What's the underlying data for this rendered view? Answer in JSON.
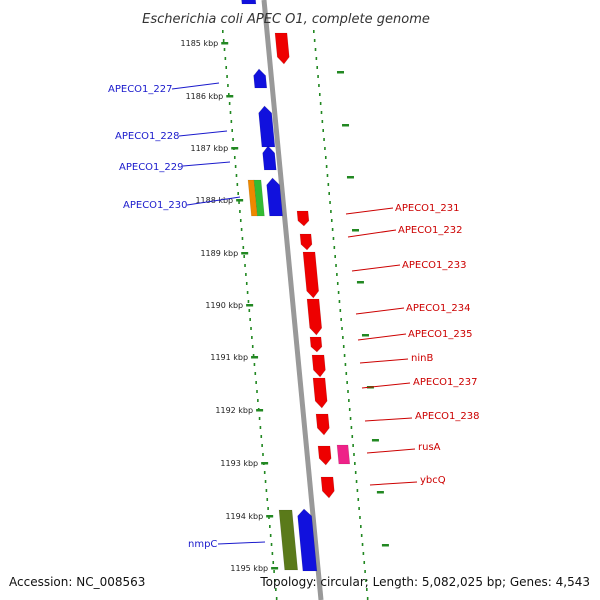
{
  "title": "Escherichia coli APEC O1, complete genome",
  "accession": "Accession: NC_008563",
  "summary": "Topology: circular; Length: 5,082,025 bp; Genes: 4,543",
  "ticks": [
    "1185 kbp",
    "1186 kbp",
    "1187 kbp",
    "1188 kbp",
    "1189 kbp",
    "1190 kbp",
    "1191 kbp",
    "1192 kbp",
    "1193 kbp",
    "1194 kbp",
    "1195 kbp"
  ],
  "genes_left": [
    "APECO1_227",
    "APECO1_228",
    "APECO1_229",
    "APECO1_230",
    "nmpC"
  ],
  "genes_right": [
    "APECO1_231",
    "APECO1_232",
    "APECO1_233",
    "APECO1_234",
    "APECO1_235",
    "ninB",
    "APECO1_237",
    "APECO1_238",
    "rusA",
    "ybcQ"
  ],
  "colors": {
    "forward_gene": "#ee0000",
    "reverse_gene": "#1111dd",
    "rna": "#ee8800",
    "green": "#33bb33",
    "pink": "#ee2288",
    "olive": "#5a7a1a",
    "backbone": "#999999",
    "dots": "#228822",
    "label_left": "#1a1acc",
    "label_right": "#cc0000"
  }
}
